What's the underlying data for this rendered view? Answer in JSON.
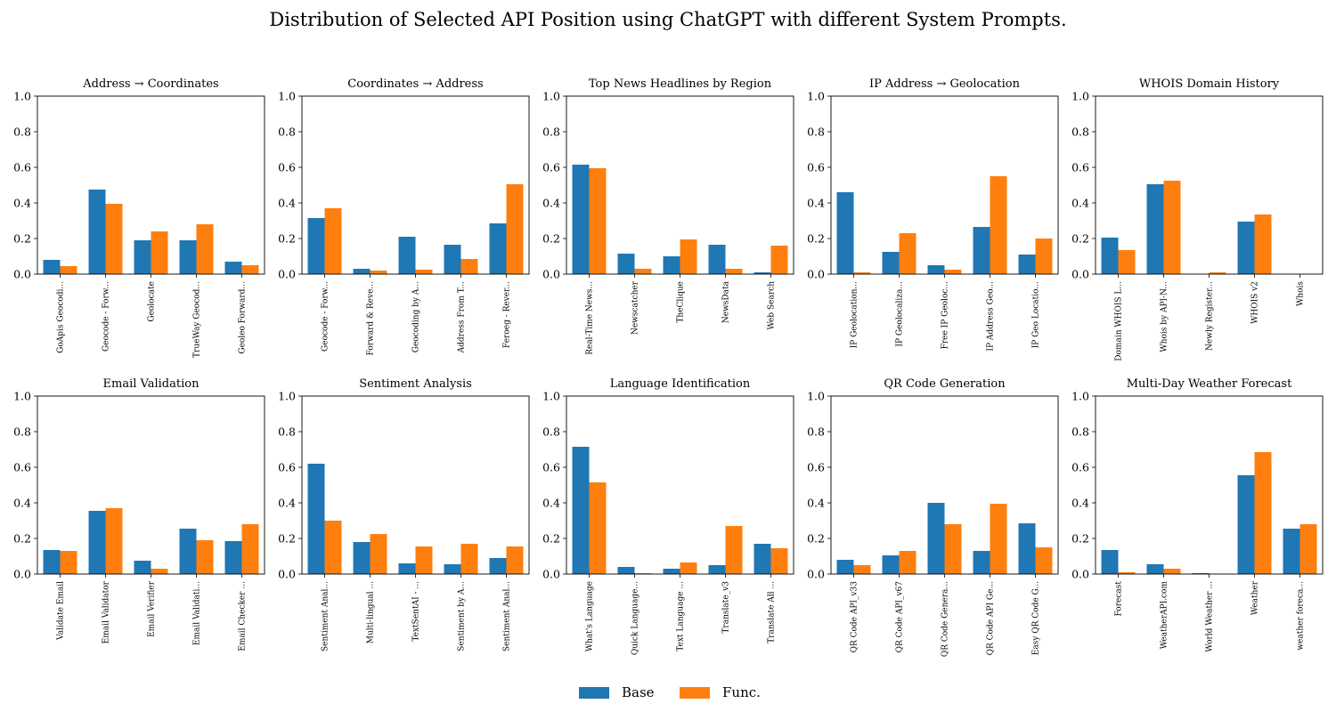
{
  "figure": {
    "title": "Distribution of Selected API Position using ChatGPT with different System Prompts.",
    "colors": {
      "base": "#1f77b4",
      "func": "#ff7f0e"
    }
  },
  "legend": {
    "base_label": "Base",
    "func_label": "Func."
  },
  "chart_data": [
    {
      "type": "bar",
      "title": "Address → Coordinates",
      "categories": [
        "GoApis Geocodi...",
        "Geocode - Forw...",
        "Geolocate",
        "TrueWay Geocod...",
        "Geoleo Forward..."
      ],
      "series": [
        {
          "name": "Base",
          "values": [
            0.08,
            0.475,
            0.19,
            0.19,
            0.07
          ]
        },
        {
          "name": "Func.",
          "values": [
            0.045,
            0.395,
            0.24,
            0.28,
            0.05
          ]
        }
      ],
      "ylim": [
        0,
        1.0
      ],
      "yticks": [
        "0.0",
        "0.2",
        "0.4",
        "0.6",
        "0.8",
        "1.0"
      ]
    },
    {
      "type": "bar",
      "title": "Coordinates → Address",
      "categories": [
        "Geocode - Forw...",
        "Forward & Reve...",
        "Geocoding by A...",
        "Address From T...",
        "Feroeg - Rever..."
      ],
      "series": [
        {
          "name": "Base",
          "values": [
            0.315,
            0.03,
            0.21,
            0.165,
            0.285
          ]
        },
        {
          "name": "Func.",
          "values": [
            0.37,
            0.02,
            0.025,
            0.085,
            0.505
          ]
        }
      ],
      "ylim": [
        0,
        1.0
      ],
      "yticks": [
        "0.0",
        "0.2",
        "0.4",
        "0.6",
        "0.8",
        "1.0"
      ]
    },
    {
      "type": "bar",
      "title": "Top News Headlines by Region",
      "categories": [
        "Real-Time News...",
        "Newscatcher",
        "TheClique",
        "NewsData",
        "Web Search"
      ],
      "series": [
        {
          "name": "Base",
          "values": [
            0.615,
            0.115,
            0.1,
            0.165,
            0.01
          ]
        },
        {
          "name": "Func.",
          "values": [
            0.595,
            0.03,
            0.195,
            0.03,
            0.16
          ]
        }
      ],
      "ylim": [
        0,
        1.0
      ],
      "yticks": [
        "0.0",
        "0.2",
        "0.4",
        "0.6",
        "0.8",
        "1.0"
      ]
    },
    {
      "type": "bar",
      "title": "IP Address → Geolocation",
      "categories": [
        "IP Geolocation...",
        "IP Geolocaliza...",
        "Free IP Geoloc...",
        "IP Address Geo...",
        "IP Geo Locatio..."
      ],
      "series": [
        {
          "name": "Base",
          "values": [
            0.46,
            0.125,
            0.05,
            0.265,
            0.11
          ]
        },
        {
          "name": "Func.",
          "values": [
            0.01,
            0.23,
            0.025,
            0.55,
            0.2
          ]
        }
      ],
      "ylim": [
        0,
        1.0
      ],
      "yticks": [
        "0.0",
        "0.2",
        "0.4",
        "0.6",
        "0.8",
        "1.0"
      ]
    },
    {
      "type": "bar",
      "title": "WHOIS Domain History",
      "categories": [
        "Domain WHOIS L...",
        "Whois by API-N...",
        "Newly Register...",
        "WHOIS v2",
        "Whois"
      ],
      "series": [
        {
          "name": "Base",
          "values": [
            0.205,
            0.505,
            0.0,
            0.295,
            0.0
          ]
        },
        {
          "name": "Func.",
          "values": [
            0.135,
            0.525,
            0.01,
            0.335,
            0.0
          ]
        }
      ],
      "ylim": [
        0,
        1.0
      ],
      "yticks": [
        "0.0",
        "0.2",
        "0.4",
        "0.6",
        "0.8",
        "1.0"
      ]
    },
    {
      "type": "bar",
      "title": "Email Validation",
      "categories": [
        "Validate Email",
        "Email Validator",
        "Email Verifier",
        "Email Validati...",
        "Email Checker ..."
      ],
      "series": [
        {
          "name": "Base",
          "values": [
            0.135,
            0.355,
            0.075,
            0.255,
            0.185
          ]
        },
        {
          "name": "Func.",
          "values": [
            0.13,
            0.37,
            0.03,
            0.19,
            0.28
          ]
        }
      ],
      "ylim": [
        0,
        1.0
      ],
      "yticks": [
        "0.0",
        "0.2",
        "0.4",
        "0.6",
        "0.8",
        "1.0"
      ]
    },
    {
      "type": "bar",
      "title": "Sentiment Analysis",
      "categories": [
        "Sentiment Anal...",
        "Multi-lingual ...",
        "TextSentAI - ...",
        "Sentiment by A...",
        "Sentiment Anal..."
      ],
      "series": [
        {
          "name": "Base",
          "values": [
            0.62,
            0.18,
            0.06,
            0.055,
            0.09
          ]
        },
        {
          "name": "Func.",
          "values": [
            0.3,
            0.225,
            0.155,
            0.17,
            0.155
          ]
        }
      ],
      "ylim": [
        0,
        1.0
      ],
      "yticks": [
        "0.0",
        "0.2",
        "0.4",
        "0.6",
        "0.8",
        "1.0"
      ]
    },
    {
      "type": "bar",
      "title": "Language Identification",
      "categories": [
        "What's Language",
        "Quick Language...",
        "Text Language ...",
        "Translate_v3",
        "Translate All ..."
      ],
      "series": [
        {
          "name": "Base",
          "values": [
            0.715,
            0.04,
            0.03,
            0.05,
            0.17
          ]
        },
        {
          "name": "Func.",
          "values": [
            0.515,
            0.005,
            0.065,
            0.27,
            0.145
          ]
        }
      ],
      "ylim": [
        0,
        1.0
      ],
      "yticks": [
        "0.0",
        "0.2",
        "0.4",
        "0.6",
        "0.8",
        "1.0"
      ]
    },
    {
      "type": "bar",
      "title": "QR Code Generation",
      "categories": [
        "QR Code API_v33",
        "QR Code API_v67",
        "QR Code Genera...",
        "QR Code API Ge...",
        "Easy QR Code G..."
      ],
      "series": [
        {
          "name": "Base",
          "values": [
            0.08,
            0.105,
            0.4,
            0.13,
            0.285
          ]
        },
        {
          "name": "Func.",
          "values": [
            0.05,
            0.13,
            0.28,
            0.395,
            0.15
          ]
        }
      ],
      "ylim": [
        0,
        1.0
      ],
      "yticks": [
        "0.0",
        "0.2",
        "0.4",
        "0.6",
        "0.8",
        "1.0"
      ]
    },
    {
      "type": "bar",
      "title": "Multi-Day Weather Forecast",
      "categories": [
        "Forecast",
        "WeatherAPI.com",
        "World Weather ...",
        "Weather",
        "weather foreca..."
      ],
      "series": [
        {
          "name": "Base",
          "values": [
            0.135,
            0.055,
            0.005,
            0.555,
            0.255
          ]
        },
        {
          "name": "Func.",
          "values": [
            0.01,
            0.03,
            0.0,
            0.685,
            0.28
          ]
        }
      ],
      "ylim": [
        0,
        1.0
      ],
      "yticks": [
        "0.0",
        "0.2",
        "0.4",
        "0.6",
        "0.8",
        "1.0"
      ]
    }
  ]
}
